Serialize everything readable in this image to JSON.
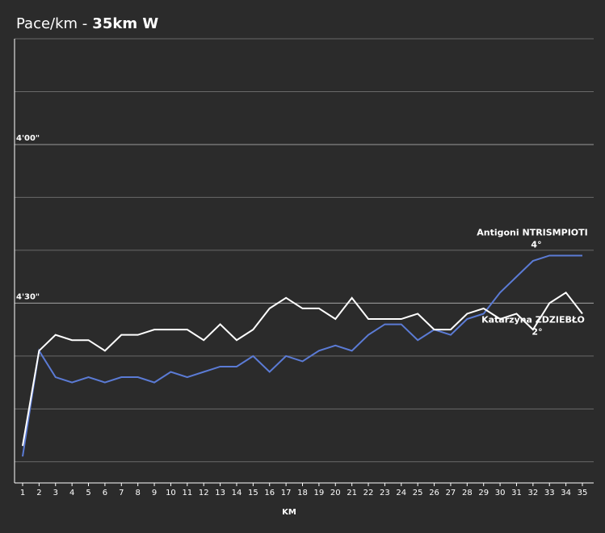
{
  "chart_data": {
    "type": "line",
    "title": "Pace/km -",
    "title_bold": "35km W",
    "x_label": "KM",
    "x": [
      1,
      2,
      3,
      4,
      5,
      6,
      7,
      8,
      9,
      10,
      11,
      12,
      13,
      14,
      15,
      16,
      17,
      18,
      19,
      20,
      21,
      22,
      23,
      24,
      25,
      26,
      27,
      28,
      29,
      30,
      31,
      32,
      33,
      34,
      35
    ],
    "xlim": [
      1,
      35
    ],
    "ylim": [
      304,
      220
    ],
    "yticks": [
      {
        "value": 240,
        "label": "4'00\""
      },
      {
        "value": 270,
        "label": "4'30\""
      }
    ],
    "grid_lines": [
      220,
      230,
      240,
      250,
      260,
      270,
      280,
      290,
      300
    ],
    "series": [
      {
        "name": "Antigoni NTRISMPIOTI",
        "rank": "4°",
        "color": "#5b7bd5",
        "values": [
          299,
          279,
          284,
          285,
          284,
          285,
          284,
          284,
          285,
          283,
          284,
          283,
          282,
          282,
          280,
          283,
          280,
          281,
          279,
          278,
          279,
          276,
          274,
          274,
          277,
          275,
          276,
          273,
          272,
          268,
          265,
          262,
          261,
          261,
          261
        ]
      },
      {
        "name": "Katarzyna ZDZIEBŁO",
        "rank": "2°",
        "color": "#ffffff",
        "values": [
          297,
          279,
          276,
          277,
          277,
          279,
          276,
          276,
          275,
          275,
          275,
          277,
          274,
          277,
          275,
          271,
          269,
          271,
          271,
          273,
          269,
          273,
          273,
          273,
          272,
          275,
          275,
          272,
          271,
          273,
          272,
          275,
          270,
          268,
          272
        ]
      }
    ]
  }
}
